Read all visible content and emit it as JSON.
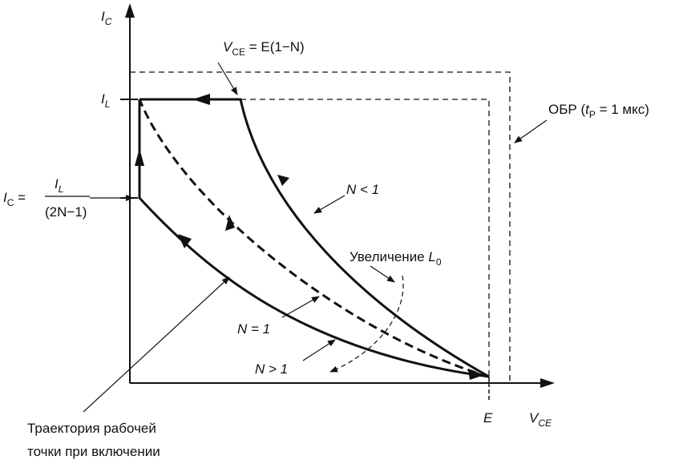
{
  "axes": {
    "y_label": {
      "main": "I",
      "sub": "C"
    },
    "x_label": {
      "main": "V",
      "sub": "CE"
    },
    "x_tick": "E",
    "y_tick": {
      "main": "I",
      "sub": "L"
    }
  },
  "labels": {
    "vce_formula": {
      "v": "V",
      "sub": "CE",
      "rest": " = E(1−N)"
    },
    "ic_formula": {
      "lhs_main": "I",
      "lhs_sub": "C",
      "eq": " =",
      "num_main": "I",
      "num_sub": "L",
      "den": "(2N−1)"
    },
    "sor": {
      "pre": "ОБР (",
      "t": "t",
      "t_sub": "P",
      "post": " = 1 мкс)"
    },
    "n_lt_1": "N < 1",
    "n_eq_1": "N = 1",
    "n_gt_1": "N > 1",
    "increase": {
      "text": "Увеличение ",
      "L": "L",
      "L_sub": "0"
    },
    "trajectory": [
      "Траектория рабочей",
      "точки при включении"
    ]
  },
  "colors": {
    "line": "#111111",
    "background": "#ffffff"
  }
}
